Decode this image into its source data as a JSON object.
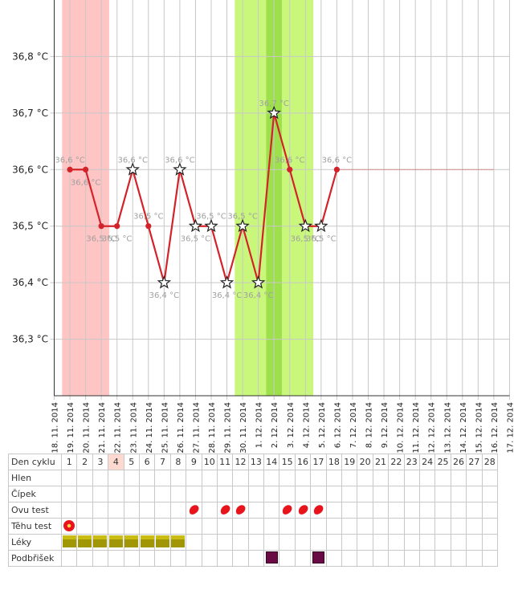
{
  "chart_data": {
    "type": "line",
    "ylim": [
      36.2,
      36.9
    ],
    "y_ticks": [
      "36,3 °C",
      "36,4 °C",
      "36,5 °C",
      "36,6 °C",
      "36,7 °C",
      "36,8 °C"
    ],
    "x_labels": [
      "18. 11. 2014",
      "19. 11. 2014",
      "20. 11. 2014",
      "21. 11. 2014",
      "22. 11. 2014",
      "23. 11. 2014",
      "24. 11. 2014",
      "25. 11. 2014",
      "26. 11. 2014",
      "27. 11. 2014",
      "28. 11. 2014",
      "29. 11. 2014",
      "30. 11. 2014",
      "1. 12. 2014",
      "2. 12. 2014",
      "3. 12. 2014",
      "4. 12. 2014",
      "5. 12. 2014",
      "6. 12. 2014",
      "7. 12. 2014",
      "8. 12. 2014",
      "9. 12. 2014",
      "10. 12. 2014",
      "11. 12. 2014",
      "12. 12. 2014",
      "13. 12. 2014",
      "14. 12. 2014",
      "15. 12. 2014",
      "16. 12. 2014",
      "17. 12. 2014"
    ],
    "series": [
      {
        "points": [
          {
            "x": "19. 11. 2014",
            "y": 36.6,
            "label": "36,6 °C",
            "marker": "dot"
          },
          {
            "x": "20. 11. 2014",
            "y": 36.6,
            "label": "36,6 °C",
            "marker": "dot"
          },
          {
            "x": "21. 11. 2014",
            "y": 36.5,
            "label": "36,5 °C",
            "marker": "dot"
          },
          {
            "x": "22. 11. 2014",
            "y": 36.5,
            "label": "36,5 °C",
            "marker": "dot"
          },
          {
            "x": "23. 11. 2014",
            "y": 36.6,
            "label": "36,6 °C",
            "marker": "star"
          },
          {
            "x": "24. 11. 2014",
            "y": 36.5,
            "label": "36,5 °C",
            "marker": "dot"
          },
          {
            "x": "25. 11. 2014",
            "y": 36.4,
            "label": "36,4 °C",
            "marker": "star"
          },
          {
            "x": "26. 11. 2014",
            "y": 36.6,
            "label": "36,6 °C",
            "marker": "star"
          },
          {
            "x": "27. 11. 2014",
            "y": 36.5,
            "label": "36,5 °C",
            "marker": "star"
          },
          {
            "x": "28. 11. 2014",
            "y": 36.5,
            "label": "36,5 °C",
            "marker": "star"
          },
          {
            "x": "29. 11. 2014",
            "y": 36.4,
            "label": "36,4 °C",
            "marker": "star"
          },
          {
            "x": "30. 11. 2014",
            "y": 36.5,
            "label": "36,5 °C",
            "marker": "star"
          },
          {
            "x": "1. 12. 2014",
            "y": 36.4,
            "label": "36,4 °C",
            "marker": "star"
          },
          {
            "x": "2. 12. 2014",
            "y": 36.7,
            "label": "36,7 °C",
            "marker": "star"
          },
          {
            "x": "3. 12. 2014",
            "y": 36.6,
            "label": "36,6 °C",
            "marker": "dot"
          },
          {
            "x": "4. 12. 2014",
            "y": 36.5,
            "label": "36,5 °C",
            "marker": "star"
          },
          {
            "x": "5. 12. 2014",
            "y": 36.5,
            "label": "36,5 °C",
            "marker": "star"
          },
          {
            "x": "6. 12. 2014",
            "y": 36.6,
            "label": "36,6 °C",
            "marker": "dot"
          }
        ],
        "projection": {
          "from": "6. 12. 2014",
          "to": "16. 12. 2014",
          "y": 36.6
        },
        "color": "#d2232a"
      }
    ],
    "bands": [
      {
        "from": "19. 11. 2014",
        "to": "21. 11. 2014",
        "color": "#ffc4c4"
      },
      {
        "from": "30. 11. 2014",
        "to": "4. 12. 2014",
        "color": "#c9f77c"
      },
      {
        "from": "2. 12. 2014",
        "to": "2. 12. 2014",
        "color": "#9ee04c"
      }
    ],
    "grid": true
  },
  "table": {
    "header_label": "Den cyklu",
    "days": [
      "1",
      "2",
      "3",
      "4",
      "5",
      "6",
      "7",
      "8",
      "9",
      "10",
      "11",
      "12",
      "13",
      "14",
      "15",
      "16",
      "17",
      "18",
      "19",
      "20",
      "21",
      "22",
      "23",
      "24",
      "25",
      "26",
      "27",
      "28"
    ],
    "today_day": "4",
    "rows": [
      {
        "label": "Hlen",
        "icon": "",
        "days": []
      },
      {
        "label": "Čípek",
        "icon": "",
        "days": []
      },
      {
        "label": "Ovu test",
        "icon": "ovu-test-icon",
        "days": [
          "9",
          "11",
          "12",
          "15",
          "16",
          "17"
        ]
      },
      {
        "label": "Těhu test",
        "icon": "pregnancy-test-icon",
        "days": [
          "1"
        ]
      },
      {
        "label": "Léky",
        "icon": "medication-icon",
        "days": [
          "1",
          "2",
          "3",
          "4",
          "5",
          "6",
          "7",
          "8"
        ]
      },
      {
        "label": "Podbřišek",
        "icon": "abdominal-pain-icon",
        "days": [
          "14",
          "17"
        ]
      }
    ]
  },
  "colors": {
    "line": "#d2232a",
    "grid": "#c8c8c8",
    "point_label": "#a0a0a0"
  }
}
